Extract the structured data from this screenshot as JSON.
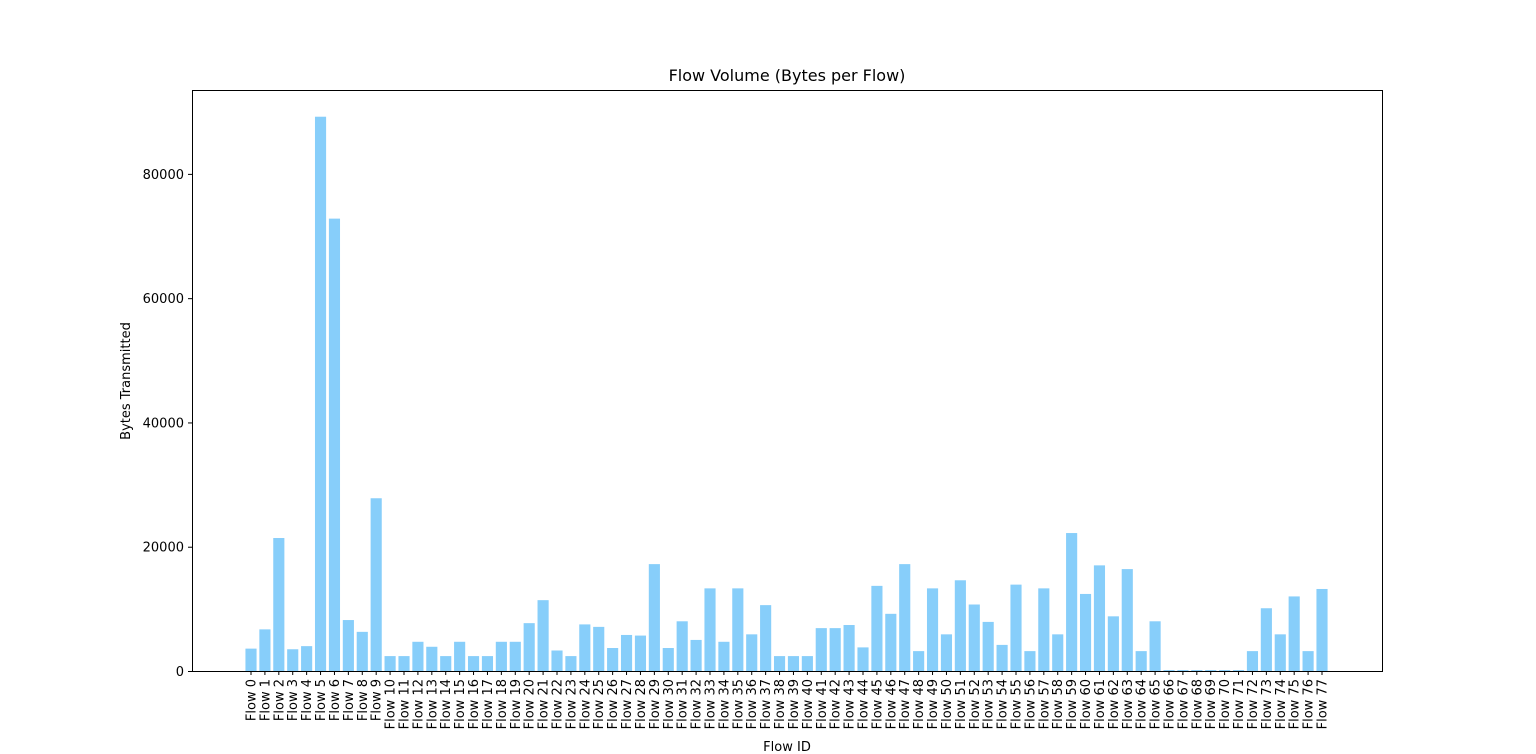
{
  "chart_data": {
    "type": "bar",
    "title": "Flow Volume (Bytes per Flow)",
    "xlabel": "Flow ID",
    "ylabel": "Bytes Transmitted",
    "ylim": [
      0,
      93500
    ],
    "yticks": [
      0,
      20000,
      40000,
      60000,
      80000
    ],
    "ytick_labels": [
      "0",
      "20000",
      "40000",
      "60000",
      "80000"
    ],
    "grid": false,
    "bar_color": "#87CEFA",
    "categories": [
      "Flow 0",
      "Flow 1",
      "Flow 2",
      "Flow 3",
      "Flow 4",
      "Flow 5",
      "Flow 6",
      "Flow 7",
      "Flow 8",
      "Flow 9",
      "Flow 10",
      "Flow 11",
      "Flow 12",
      "Flow 13",
      "Flow 14",
      "Flow 15",
      "Flow 16",
      "Flow 17",
      "Flow 18",
      "Flow 19",
      "Flow 20",
      "Flow 21",
      "Flow 22",
      "Flow 23",
      "Flow 24",
      "Flow 25",
      "Flow 26",
      "Flow 27",
      "Flow 28",
      "Flow 29",
      "Flow 30",
      "Flow 31",
      "Flow 32",
      "Flow 33",
      "Flow 34",
      "Flow 35",
      "Flow 36",
      "Flow 37",
      "Flow 38",
      "Flow 39",
      "Flow 40",
      "Flow 41",
      "Flow 42",
      "Flow 43",
      "Flow 44",
      "Flow 45",
      "Flow 46",
      "Flow 47",
      "Flow 48",
      "Flow 49",
      "Flow 50",
      "Flow 51",
      "Flow 52",
      "Flow 53",
      "Flow 54",
      "Flow 55",
      "Flow 56",
      "Flow 57",
      "Flow 58",
      "Flow 59",
      "Flow 60",
      "Flow 61",
      "Flow 62",
      "Flow 63",
      "Flow 64",
      "Flow 65",
      "Flow 66",
      "Flow 67",
      "Flow 68",
      "Flow 69",
      "Flow 70",
      "Flow 71",
      "Flow 72",
      "Flow 73",
      "Flow 74",
      "Flow 75",
      "Flow 76",
      "Flow 77"
    ],
    "values": [
      3600,
      6700,
      21400,
      3500,
      4000,
      89200,
      72800,
      8200,
      6300,
      27800,
      2400,
      2400,
      4700,
      3900,
      2400,
      4700,
      2400,
      2400,
      4700,
      4700,
      7700,
      11400,
      3300,
      2400,
      7500,
      7100,
      3700,
      5800,
      5700,
      17200,
      3700,
      8000,
      5000,
      13300,
      4700,
      13300,
      5900,
      10600,
      2400,
      2400,
      2400,
      6900,
      6900,
      7400,
      3800,
      13700,
      9200,
      17200,
      3200,
      13300,
      5900,
      14600,
      10700,
      7900,
      4200,
      13900,
      3200,
      13300,
      5900,
      22200,
      12400,
      17000,
      8800,
      16400,
      3200,
      8000,
      150,
      150,
      150,
      150,
      150,
      150,
      3200,
      10100,
      5900,
      12000,
      3200,
      13200
    ]
  }
}
